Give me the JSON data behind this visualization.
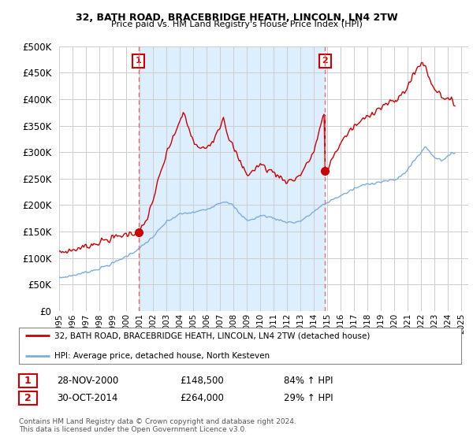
{
  "title1": "32, BATH ROAD, BRACEBRIDGE HEATH, LINCOLN, LN4 2TW",
  "title2": "Price paid vs. HM Land Registry's House Price Index (HPI)",
  "legend_line1": "32, BATH ROAD, BRACEBRIDGE HEATH, LINCOLN, LN4 2TW (detached house)",
  "legend_line2": "HPI: Average price, detached house, North Kesteven",
  "annotation1_label": "1",
  "annotation1_date": "28-NOV-2000",
  "annotation1_price": "£148,500",
  "annotation1_hpi": "84% ↑ HPI",
  "annotation2_label": "2",
  "annotation2_date": "30-OCT-2014",
  "annotation2_price": "£264,000",
  "annotation2_hpi": "29% ↑ HPI",
  "footnote": "Contains HM Land Registry data © Crown copyright and database right 2024.\nThis data is licensed under the Open Government Licence v3.0.",
  "red_color": "#cc0000",
  "blue_color": "#7aade0",
  "vline_color": "#e87070",
  "shade_color": "#ddeeff",
  "background_color": "#ffffff",
  "grid_color": "#cccccc",
  "sale1_x": 2000.91,
  "sale1_y": 148500,
  "sale2_x": 2014.83,
  "sale2_y": 264000,
  "ylim": [
    0,
    500000
  ],
  "xlim": [
    1995.0,
    2025.5
  ],
  "yticks": [
    0,
    50000,
    100000,
    150000,
    200000,
    250000,
    300000,
    350000,
    400000,
    450000,
    500000
  ],
  "xticks": [
    1995,
    1996,
    1997,
    1998,
    1999,
    2000,
    2001,
    2002,
    2003,
    2004,
    2005,
    2006,
    2007,
    2008,
    2009,
    2010,
    2011,
    2012,
    2013,
    2014,
    2015,
    2016,
    2017,
    2018,
    2019,
    2020,
    2021,
    2022,
    2023,
    2024,
    2025
  ]
}
